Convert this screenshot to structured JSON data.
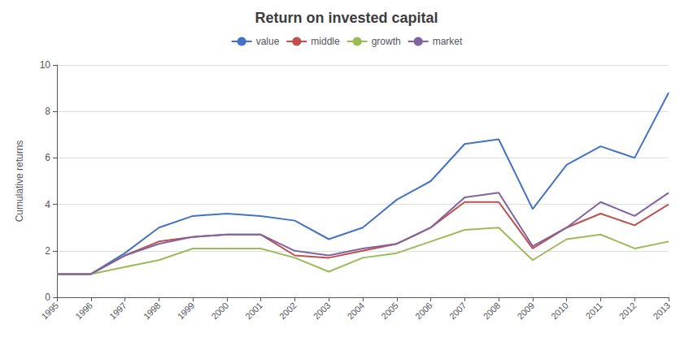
{
  "chart_data": {
    "type": "line",
    "title": "Return on invested capital",
    "ylabel": "Cumulative returns",
    "x": [
      1995,
      1996,
      1997,
      1998,
      1999,
      2000,
      2001,
      2002,
      2003,
      2004,
      2005,
      2006,
      2007,
      2008,
      2009,
      2010,
      2011,
      2012,
      2013
    ],
    "series": [
      {
        "name": "value",
        "color": "#4472C4",
        "values": [
          1.0,
          1.0,
          1.9,
          3.0,
          3.5,
          3.6,
          3.5,
          3.3,
          2.5,
          3.0,
          4.2,
          5.0,
          6.6,
          6.8,
          3.8,
          5.7,
          6.5,
          6.0,
          8.8
        ]
      },
      {
        "name": "middle",
        "color": "#C0504D",
        "values": [
          1.0,
          1.0,
          1.8,
          2.4,
          2.6,
          2.7,
          2.7,
          1.8,
          1.7,
          2.0,
          2.3,
          3.0,
          4.1,
          4.1,
          2.1,
          3.0,
          3.6,
          3.1,
          4.0
        ]
      },
      {
        "name": "growth",
        "color": "#9BBB59",
        "values": [
          1.0,
          1.0,
          1.3,
          1.6,
          2.1,
          2.1,
          2.1,
          1.7,
          1.1,
          1.7,
          1.9,
          2.4,
          2.9,
          3.0,
          1.6,
          2.5,
          2.7,
          2.1,
          2.4
        ]
      },
      {
        "name": "market",
        "color": "#8064A2",
        "values": [
          1.0,
          1.0,
          1.8,
          2.3,
          2.6,
          2.7,
          2.7,
          2.0,
          1.8,
          2.1,
          2.3,
          3.0,
          4.3,
          4.5,
          2.2,
          3.0,
          4.1,
          3.5,
          4.5
        ]
      }
    ],
    "xlim": [
      1995,
      2013
    ],
    "xticks": [
      1995,
      1996,
      1997,
      1998,
      1999,
      2000,
      2001,
      2002,
      2003,
      2004,
      2005,
      2006,
      2007,
      2008,
      2009,
      2010,
      2011,
      2012,
      2013
    ],
    "ylim": [
      0,
      10
    ],
    "yticks": [
      0,
      2,
      4,
      6,
      8,
      10
    ],
    "grid": true,
    "legend": "top"
  }
}
